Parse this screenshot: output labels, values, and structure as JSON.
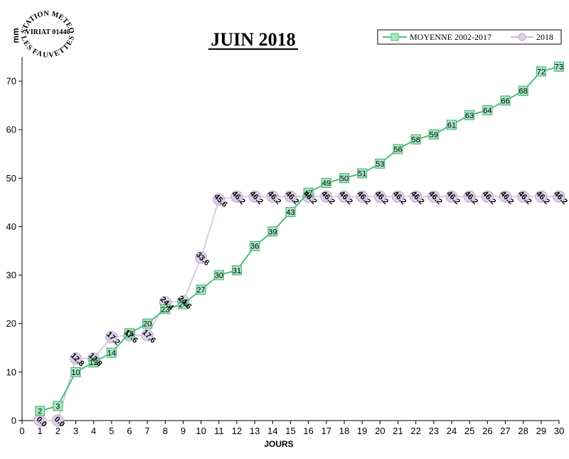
{
  "logo": {
    "arc_top": "STATION METEO",
    "middle": "VIRIAT 01440",
    "arc_bottom": "LES FAUVETTES"
  },
  "chart_data": {
    "type": "line",
    "title": "JUIN 2018",
    "xlabel": "JOURS",
    "ylabel": "mm",
    "xlim": [
      0,
      30
    ],
    "ylim": [
      0,
      75
    ],
    "x_ticks": [
      0,
      1,
      2,
      3,
      4,
      5,
      6,
      7,
      8,
      9,
      10,
      11,
      12,
      13,
      14,
      15,
      16,
      17,
      18,
      19,
      20,
      21,
      22,
      23,
      24,
      25,
      26,
      27,
      28,
      29,
      30
    ],
    "y_ticks": [
      0,
      10,
      20,
      30,
      40,
      50,
      60,
      70
    ],
    "grid": false,
    "legend_position": "top-right",
    "series": [
      {
        "name": "MOYENNE 2002-2017",
        "color": "#4dbf7f",
        "marker": "square",
        "x": [
          1,
          2,
          3,
          4,
          5,
          6,
          7,
          8,
          9,
          10,
          11,
          12,
          13,
          14,
          15,
          16,
          17,
          18,
          19,
          20,
          21,
          22,
          23,
          24,
          25,
          26,
          27,
          28,
          29,
          30
        ],
        "values": [
          2,
          3,
          10,
          12,
          14,
          18,
          20,
          23,
          24,
          27,
          30,
          31,
          36,
          39,
          43,
          47,
          49,
          50,
          51,
          53,
          56,
          58,
          59,
          61,
          63,
          64,
          66,
          68,
          72,
          73
        ],
        "labels": [
          "2",
          "3",
          "10",
          "12",
          "14",
          "18",
          "20",
          "23",
          "24",
          "27",
          "30",
          "31",
          "36",
          "39",
          "43",
          "47",
          "49",
          "50",
          "51",
          "53",
          "56",
          "58",
          "59",
          "61",
          "63",
          "64",
          "66",
          "68",
          "72",
          "73"
        ]
      },
      {
        "name": "2018",
        "color": "#c9b8dc",
        "marker": "circle",
        "x": [
          1,
          2,
          3,
          4,
          5,
          6,
          7,
          8,
          9,
          10,
          11,
          12,
          13,
          14,
          15,
          16,
          17,
          18,
          19,
          20,
          21,
          22,
          23,
          24,
          25,
          26,
          27,
          28,
          29,
          30
        ],
        "values": [
          0.0,
          0.0,
          12.8,
          12.8,
          17.2,
          17.6,
          17.6,
          24.4,
          24.6,
          33.6,
          45.6,
          46.2,
          46.2,
          46.2,
          46.2,
          46.2,
          46.2,
          46.2,
          46.2,
          46.2,
          46.2,
          46.2,
          46.2,
          46.2,
          46.2,
          46.2,
          46.2,
          46.2,
          46.2,
          46.2
        ],
        "labels": [
          "0.0",
          "0.0",
          "12.8",
          "12.8",
          "17.2",
          "17.6",
          "17.6",
          "24.4",
          "24.6",
          "33.6",
          "45.6",
          "46.2",
          "46.2",
          "46.2",
          "46.2",
          "46.2",
          "46.2",
          "46.2",
          "46.2",
          "46.2",
          "46.2",
          "46.2",
          "46.2",
          "46.2",
          "46.2",
          "46.2",
          "46.2",
          "46.2",
          "46.2",
          "46.2"
        ]
      }
    ]
  }
}
